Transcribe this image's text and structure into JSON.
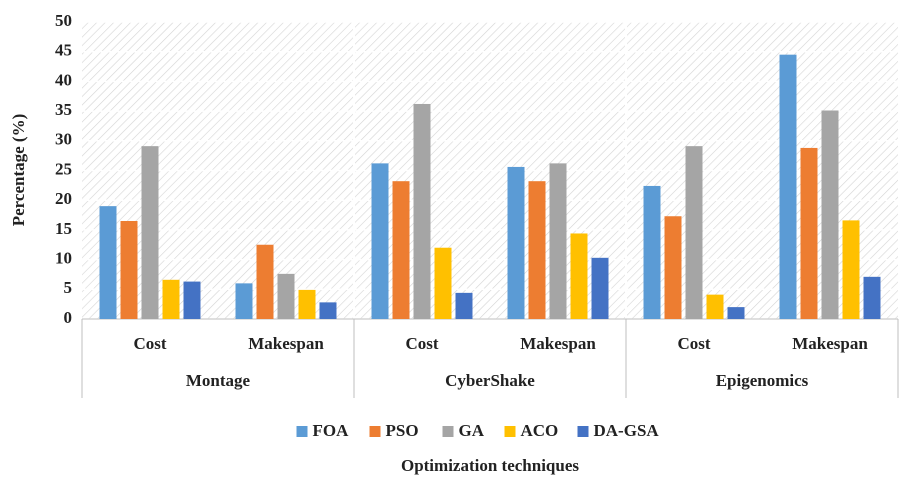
{
  "chart_data": {
    "type": "bar",
    "y_label": "Percentage (%)",
    "x_label": "Optimization techniques",
    "groups": [
      "Montage",
      "CyberShake",
      "Epigenomics"
    ],
    "categories": [
      "Cost",
      "Makespan",
      "Cost",
      "Makespan",
      "Cost",
      "Makespan"
    ],
    "series": [
      {
        "name": "FOA",
        "color": "#5b9bd5",
        "values": [
          19,
          6,
          26.2,
          25.6,
          22.4,
          44.5
        ]
      },
      {
        "name": "PSO",
        "color": "#ed7d31",
        "values": [
          16.5,
          12.5,
          23.2,
          23.2,
          17.3,
          28.8
        ]
      },
      {
        "name": "GA",
        "color": "#a5a5a5",
        "values": [
          29.1,
          7.6,
          36.2,
          26.2,
          29.1,
          35.1
        ]
      },
      {
        "name": "ACO",
        "color": "#ffc000",
        "values": [
          6.6,
          4.9,
          12,
          14.4,
          4.1,
          16.6
        ]
      },
      {
        "name": "DA-GSA",
        "color": "#4472c4",
        "values": [
          6.3,
          2.8,
          4.4,
          10.3,
          2,
          7.1
        ]
      }
    ],
    "ylim": [
      0,
      50
    ],
    "yticks": [
      0,
      5,
      10,
      15,
      20,
      25,
      30,
      35,
      40,
      45,
      50
    ],
    "grid": true
  }
}
